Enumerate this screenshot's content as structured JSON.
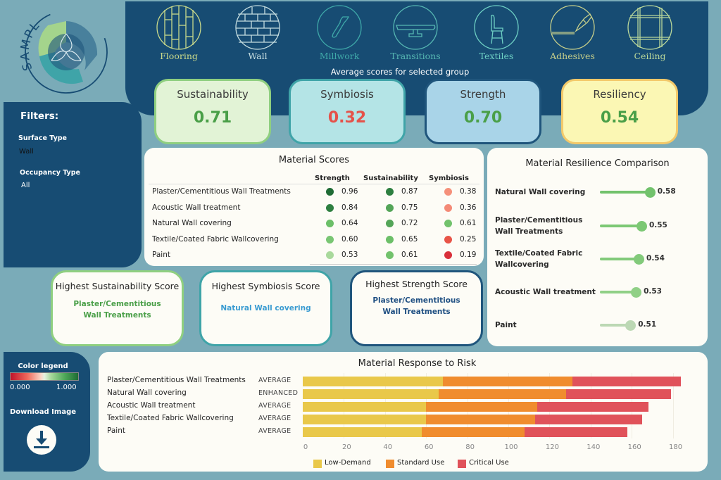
{
  "logo": {
    "text": "SAMPL"
  },
  "categories": [
    {
      "label": "Flooring",
      "icon": "flooring-icon",
      "color": "#c9d98a"
    },
    {
      "label": "Wall",
      "icon": "wall-brick-icon",
      "color": "#c5dde0"
    },
    {
      "label": "Millwork",
      "icon": "millwork-icon",
      "color": "#3fa9a9"
    },
    {
      "label": "Transitions",
      "icon": "transitions-icon",
      "color": "#56b7b2"
    },
    {
      "label": "Textiles",
      "icon": "chair-icon",
      "color": "#6ed0c4"
    },
    {
      "label": "Adhesives",
      "icon": "adhesive-tube-icon",
      "color": "#c7cf8a"
    },
    {
      "label": "Ceiling",
      "icon": "ceiling-grid-icon",
      "color": "#b9d79a"
    }
  ],
  "averages": {
    "title": "Average scores for selected group",
    "cards": [
      {
        "label": "Sustainability",
        "value": "0.71",
        "bg": "#e2f3d6",
        "border": "#8fcf80",
        "valueColor": "#4a9f48"
      },
      {
        "label": "Symbiosis",
        "value": "0.32",
        "bg": "#b4e4e6",
        "border": "#3fa4a8",
        "valueColor": "#e5524a"
      },
      {
        "label": "Strength",
        "value": "0.70",
        "bg": "#a9d4e8",
        "border": "#1f557c",
        "valueColor": "#4a9f48"
      },
      {
        "label": "Resiliency",
        "value": "0.54",
        "bg": "#fbf7b4",
        "border": "#f3c96a",
        "valueColor": "#4a9f48"
      }
    ]
  },
  "filters": {
    "title": "Filters:",
    "surface_label": "Surface Type",
    "surface_value": "Wall",
    "occupancy_label": "Occupancy Type",
    "occupancy_value": "All"
  },
  "material_scores": {
    "title": "Material Scores",
    "columns": [
      "Strength",
      "Sustainability",
      "Symbiosis"
    ],
    "rows": [
      {
        "name": "Plaster/Cementitious Wall Treatments",
        "strength": "0.96",
        "sustainability": "0.87",
        "symbiosis": "0.38",
        "c1": "#1f6b35",
        "c2": "#2e7f40",
        "c3": "#f5907a"
      },
      {
        "name": "Acoustic Wall treatment",
        "strength": "0.84",
        "sustainability": "0.75",
        "symbiosis": "0.36",
        "c1": "#2e7f40",
        "c2": "#54a558",
        "c3": "#f48a76"
      },
      {
        "name": "Natural Wall covering",
        "strength": "0.64",
        "sustainability": "0.72",
        "symbiosis": "0.61",
        "c1": "#6cbf68",
        "c2": "#54a558",
        "c3": "#72c26c"
      },
      {
        "name": "Textile/Coated Fabric Wallcovering",
        "strength": "0.60",
        "sustainability": "0.65",
        "symbiosis": "0.25",
        "c1": "#79c673",
        "c2": "#6cbf68",
        "c3": "#e85447"
      },
      {
        "name": "Paint",
        "strength": "0.53",
        "sustainability": "0.61",
        "symbiosis": "0.19",
        "c1": "#a9d99c",
        "c2": "#72c26c",
        "c3": "#d9303a"
      }
    ]
  },
  "resilience": {
    "title": "Material Resilience Comparison",
    "items": [
      {
        "name": "Natural Wall covering",
        "value": "0.58",
        "score": 0.58,
        "color": "#72c26c"
      },
      {
        "name": "Plaster/Cementitious Wall Treatments",
        "value": "0.55",
        "score": 0.55,
        "color": "#7cc874"
      },
      {
        "name": "Textile/Coated Fabric Wallcovering",
        "value": "0.54",
        "score": 0.54,
        "color": "#82ca7a"
      },
      {
        "name": "Acoustic Wall treatment",
        "value": "0.53",
        "score": 0.53,
        "color": "#90d086"
      },
      {
        "name": "Paint",
        "value": "0.51",
        "score": 0.51,
        "color": "#bcd8b4"
      }
    ]
  },
  "highest": [
    {
      "title": "Highest Sustainability Score",
      "value": "Plaster/Cementitious Wall Treatments",
      "border": "#8fcf80",
      "color": "#4a9f48"
    },
    {
      "title": "Highest Symbiosis Score",
      "value": "Natural Wall covering",
      "border": "#3fa4a8",
      "color": "#3a9bd1"
    },
    {
      "title": "Highest Strength Score",
      "value": "Plaster/Cementitious Wall Treatments",
      "border": "#1f557c",
      "color": "#1f4f82"
    }
  ],
  "legend": {
    "title": "Color legend",
    "min": "0.000",
    "max": "1.000",
    "download_label": "Download Image"
  },
  "chart_data": {
    "type": "bar",
    "orientation": "horizontal",
    "stacked": true,
    "title": "Material Response to Risk",
    "categories": [
      "Plaster/Cementitious Wall Treatments",
      "Natural Wall covering",
      "Acoustic Wall treatment",
      "Textile/Coated Fabric Wallcovering",
      "Paint"
    ],
    "levels": [
      "AVERAGE",
      "ENHANCED",
      "AVERAGE",
      "AVERAGE",
      "AVERAGE"
    ],
    "series": [
      {
        "name": "Low-Demand",
        "color": "#e9c84a",
        "values": [
          68,
          66,
          60,
          60,
          58
        ]
      },
      {
        "name": "Standard Use",
        "color": "#f08c2e",
        "values": [
          63,
          62,
          54,
          53,
          50
        ]
      },
      {
        "name": "Critical Use",
        "color": "#e0525a",
        "values": [
          53,
          51,
          54,
          52,
          50
        ]
      }
    ],
    "xlim": [
      0,
      185
    ],
    "xticks": [
      "0",
      "20",
      "40",
      "60",
      "80",
      "100",
      "120",
      "140",
      "160",
      "180"
    ],
    "legend_position": "bottom",
    "grid": true
  }
}
